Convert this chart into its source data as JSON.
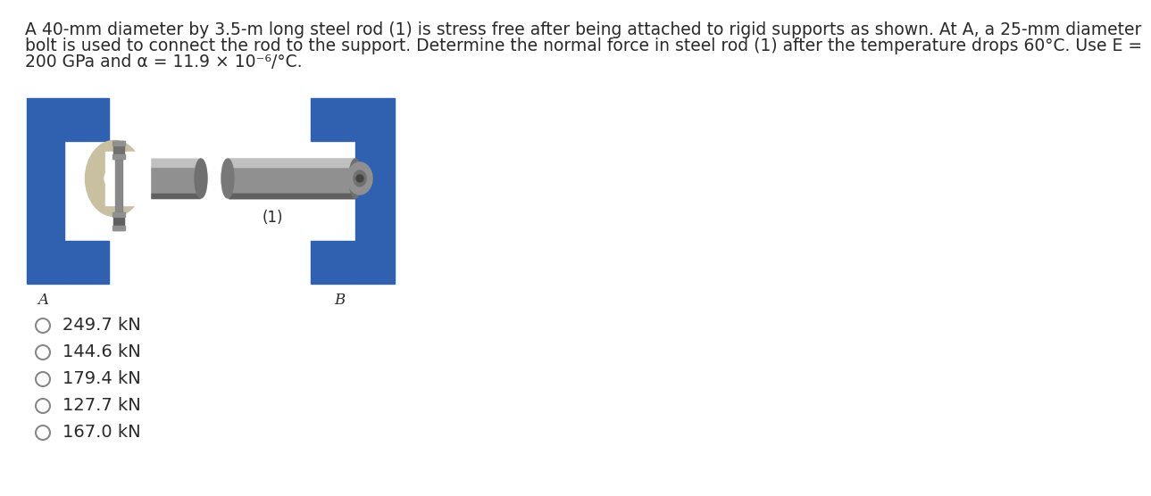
{
  "title_line1": "A 40-mm diameter by 3.5-m long steel rod (1) is stress free after being attached to rigid supports as shown. At A, a 25-mm diameter",
  "title_line2": "bolt is used to connect the rod to the support. Determine the normal force in steel rod (1) after the temperature drops 60°C. Use E =",
  "title_line3": "200 GPa and α = 11.9 × 10⁻⁶/°C.",
  "options": [
    "249.7 kN",
    "144.6 kN",
    "179.4 kN",
    "127.7 kN",
    "167.0 kN"
  ],
  "background_color": "#ffffff",
  "text_color": "#2a2a2a",
  "option_font_size": 14,
  "title_font_size": 13.5,
  "blue_color": "#3060b0",
  "gray_rod": "#909090",
  "gray_rod_light": "#c0c0c0",
  "gray_rod_dark": "#606060",
  "clevis_color": "#c8c0a0",
  "bolt_dark": "#555555",
  "nut_color": "#808080",
  "radio_color": "#888888"
}
